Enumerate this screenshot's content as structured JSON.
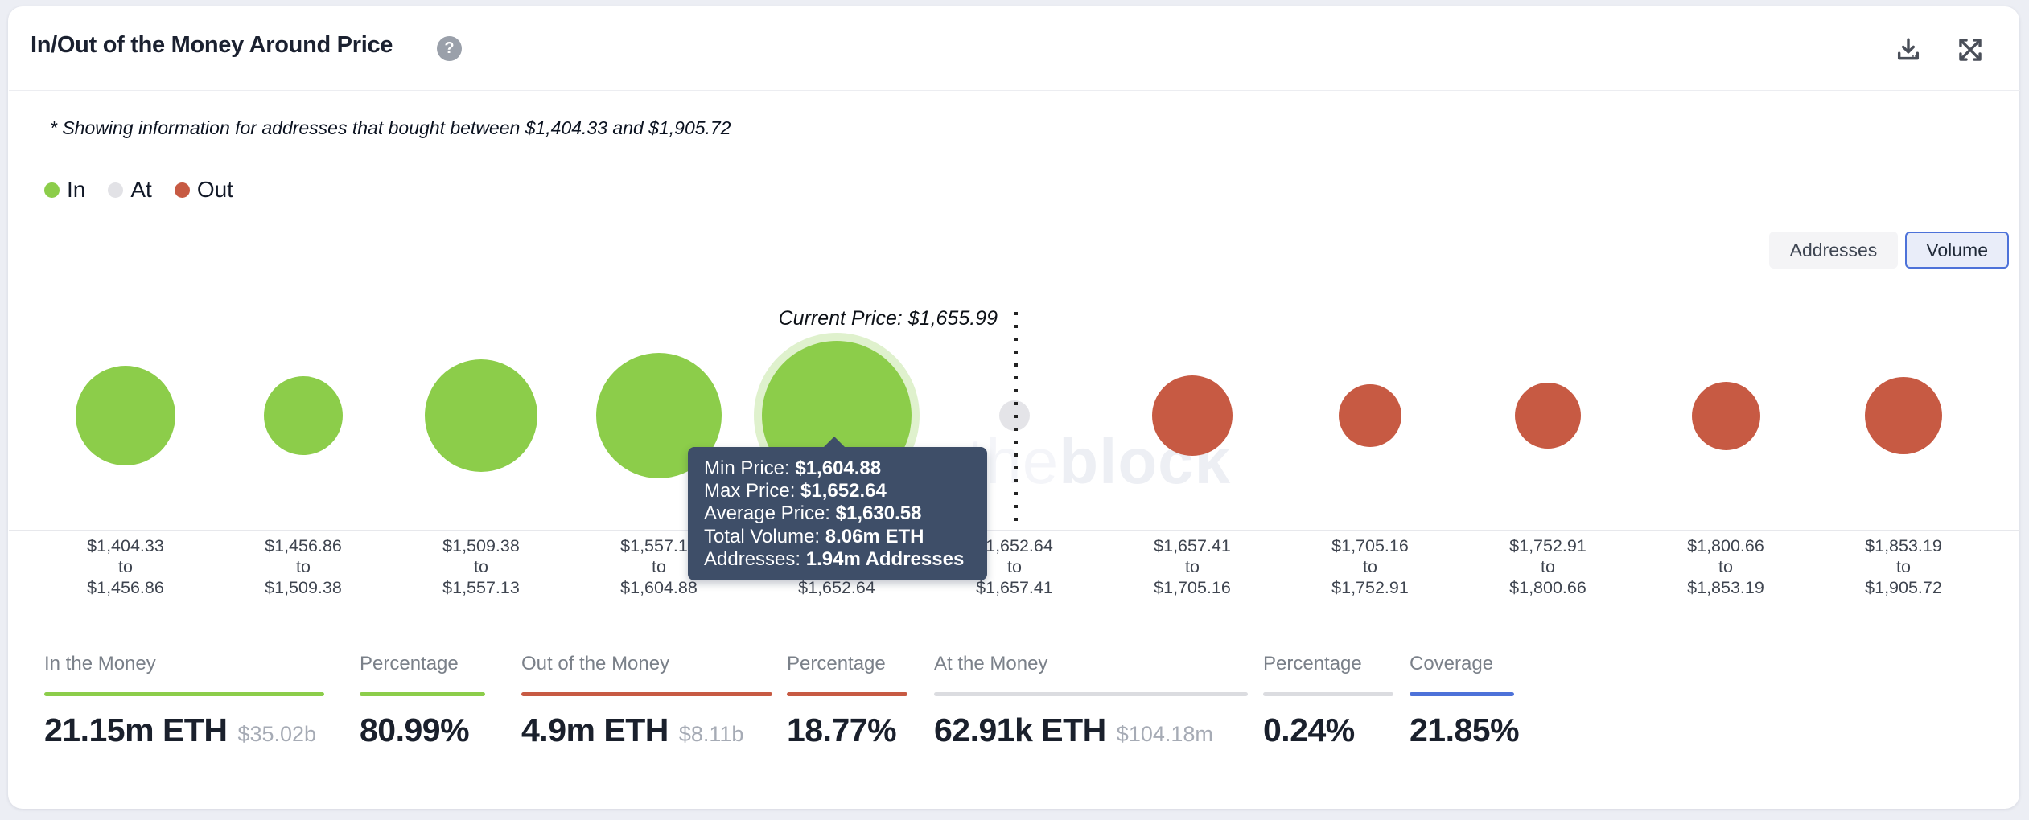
{
  "header": {
    "title": "In/Out of the Money Around Price",
    "help_icon": "question-mark",
    "actions": [
      {
        "icon": "download-icon"
      },
      {
        "icon": "fullscreen-icon"
      }
    ]
  },
  "note": "* Showing information for addresses that bought between $1,404.33 and $1,905.72",
  "legend": [
    {
      "label": "In",
      "color": "#8CCD4A"
    },
    {
      "label": "At",
      "color": "#E2E2E6"
    },
    {
      "label": "Out",
      "color": "#C75A43"
    }
  ],
  "toggle": {
    "options": [
      {
        "label": "Addresses",
        "selected": false
      },
      {
        "label": "Volume",
        "selected": true
      }
    ]
  },
  "chart_data": {
    "type": "bubble",
    "title": "In/Out of the Money Around Price",
    "mode": "Volume",
    "current_price": 1655.99,
    "current_price_label": "Current Price: $1,655.99",
    "range_separator": "to",
    "colors": {
      "in": "#8CCD4A",
      "at": "#E4E4E8",
      "out": "#C75A43"
    },
    "watermark": {
      "light": "the",
      "bold": "block"
    },
    "buckets": [
      {
        "range_low": "$1,404.33",
        "range_high": "$1,456.86",
        "status": "in",
        "diameter": 124
      },
      {
        "range_low": "$1,456.86",
        "range_high": "$1,509.38",
        "status": "in",
        "diameter": 98
      },
      {
        "range_low": "$1,509.38",
        "range_high": "$1,557.13",
        "status": "in",
        "diameter": 140
      },
      {
        "range_low": "$1,557.13",
        "range_high": "$1,604.88",
        "status": "in",
        "diameter": 156
      },
      {
        "range_low": "$1,604.88",
        "range_high": "$1,652.64",
        "status": "in",
        "diameter": 186,
        "hovered": true,
        "min_price": "$1,604.88",
        "max_price": "$1,652.64",
        "average_price": "$1,630.58",
        "total_volume": "8.06m ETH",
        "addresses": "1.94m Addresses"
      },
      {
        "range_low": "$1,652.64",
        "range_high": "$1,657.41",
        "status": "at",
        "diameter": 38
      },
      {
        "range_low": "$1,657.41",
        "range_high": "$1,705.16",
        "status": "out",
        "diameter": 100
      },
      {
        "range_low": "$1,705.16",
        "range_high": "$1,752.91",
        "status": "out",
        "diameter": 78
      },
      {
        "range_low": "$1,752.91",
        "range_high": "$1,800.66",
        "status": "out",
        "diameter": 82
      },
      {
        "range_low": "$1,800.66",
        "range_high": "$1,853.19",
        "status": "out",
        "diameter": 85
      },
      {
        "range_low": "$1,853.19",
        "range_high": "$1,905.72",
        "status": "out",
        "diameter": 96
      }
    ],
    "tooltip": {
      "anchor_bucket_index": 4,
      "rows": [
        {
          "label": "Min Price: ",
          "value": "$1,604.88"
        },
        {
          "label": "Max Price: ",
          "value": "$1,652.64"
        },
        {
          "label": "Average Price: ",
          "value": "$1,630.58"
        },
        {
          "label": "Total Volume: ",
          "value": "8.06m ETH"
        },
        {
          "label": "Addresses: ",
          "value": "1.94m Addresses"
        }
      ]
    }
  },
  "stats": [
    {
      "label": "In the Money",
      "value": "21.15m ETH",
      "sub": "$35.02b",
      "color": "#8CCD4A"
    },
    {
      "label": "Percentage",
      "value": "80.99%",
      "sub": "",
      "color": "#8CCD4A"
    },
    {
      "label": "Out of the Money",
      "value": "4.9m ETH",
      "sub": "$8.11b",
      "color": "#C75A43"
    },
    {
      "label": "Percentage",
      "value": "18.77%",
      "sub": "",
      "color": "#C75A43"
    },
    {
      "label": "At the Money",
      "value": "62.91k ETH",
      "sub": "$104.18m",
      "color": "#DBDCE0"
    },
    {
      "label": "Percentage",
      "value": "0.24%",
      "sub": "",
      "color": "#DBDCE0"
    },
    {
      "label": "Coverage",
      "value": "21.85%",
      "sub": "",
      "color": "#4D72D9"
    }
  ]
}
